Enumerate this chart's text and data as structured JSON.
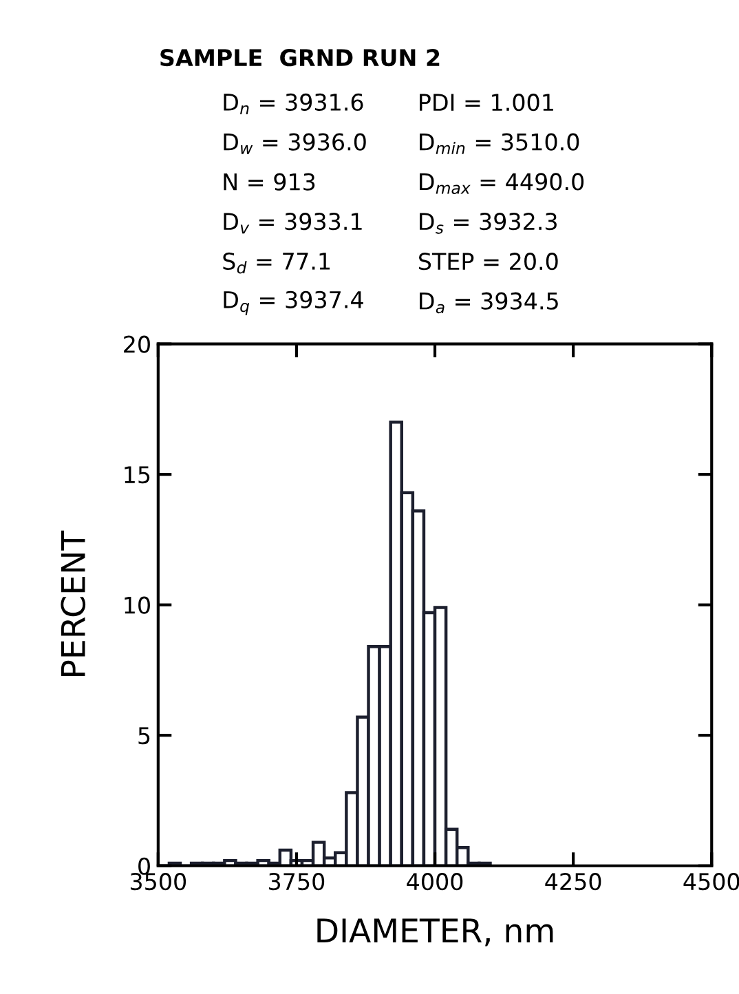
{
  "chart_data": {
    "type": "histogram",
    "title": "SAMPLE  GRND RUN 2",
    "annotations": [
      "D$_{n}$ = 3931.6",
      "PDI = 1.001",
      "D$_{w}$ = 3936.0",
      "D$_{min}$ = 3510.0",
      "N = 913",
      "D$_{max}$ = 4490.0",
      "D$_{v}$ = 3933.1",
      "D$_{s}$ = 3932.3",
      "S$_{d}$ = 77.1",
      "STEP = 20.0",
      "D$_{q}$ = 3937.4",
      "D$_{a}$ = 3934.5"
    ],
    "xlabel": "DIAMETER, nm",
    "ylabel": "PERCENT",
    "bins": [
      3500,
      3520,
      3540,
      3560,
      3580,
      3600,
      3620,
      3640,
      3660,
      3680,
      3700,
      3720,
      3740,
      3760,
      3780,
      3800,
      3820,
      3840,
      3860,
      3880,
      3900,
      3920,
      3940,
      3960,
      3980,
      4000,
      4020,
      4040,
      4060,
      4080,
      4100
    ],
    "values": [
      0,
      0.1,
      0,
      0.1,
      0.1,
      0.1,
      0.2,
      0.1,
      0.1,
      0.2,
      0.1,
      0.6,
      0.2,
      0.2,
      0.9,
      0.3,
      0.5,
      2.8,
      5.7,
      8.4,
      8.4,
      17.0,
      14.3,
      13.6,
      9.7,
      9.9,
      1.4,
      0.7,
      0.1,
      0.1
    ],
    "color": "#1c1f2e",
    "xlim": [
      3500,
      4500
    ],
    "xticks": [
      3500,
      3750,
      4000,
      4250,
      4500
    ],
    "ylim": [
      0,
      20
    ],
    "yticks": [
      0,
      5,
      10,
      15,
      20
    ],
    "grid": false
  }
}
